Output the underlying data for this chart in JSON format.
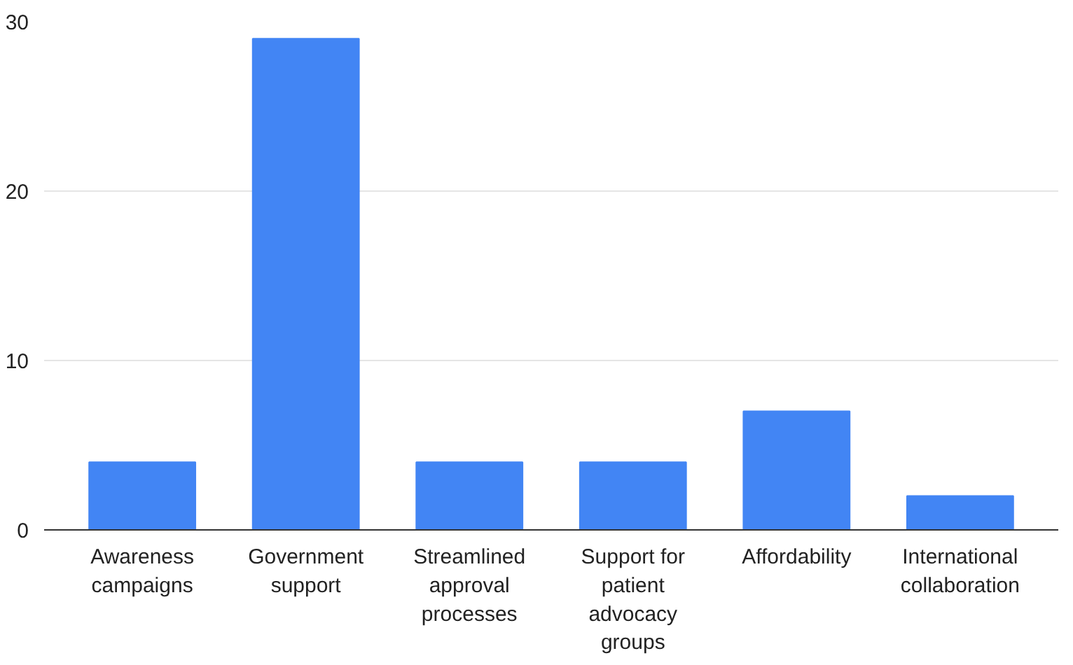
{
  "chart_data": {
    "type": "bar",
    "categories": [
      "Awareness campaigns",
      "Government support",
      "Streamlined approval processes",
      "Support for patient advocacy groups",
      "Affordability",
      "International collaboration"
    ],
    "values": [
      4,
      29,
      4,
      4,
      7,
      2
    ],
    "color": "#4285f4",
    "ylim": [
      0,
      30
    ],
    "yticks": [
      0,
      10,
      20,
      30
    ],
    "grid": "y"
  }
}
